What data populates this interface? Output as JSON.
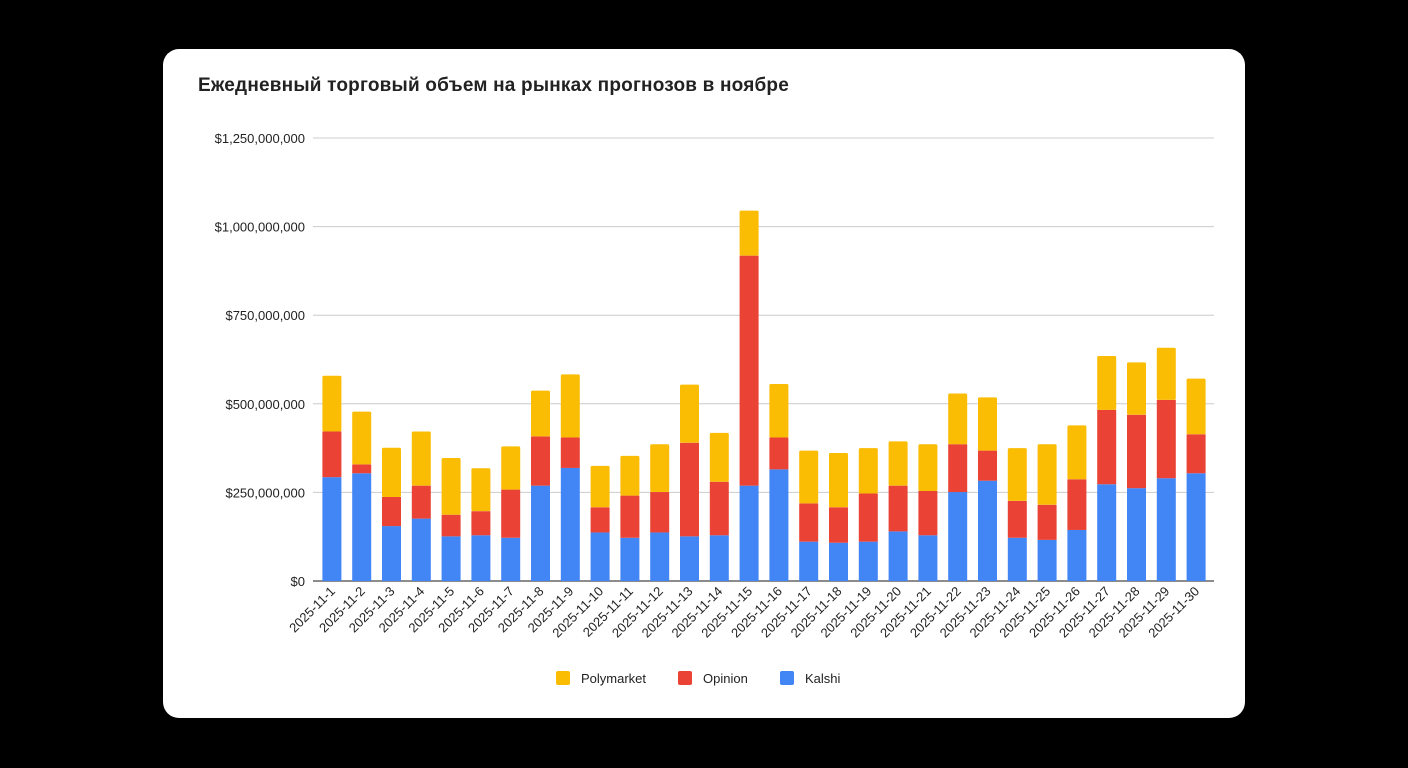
{
  "chart_data": {
    "type": "bar",
    "stacked": true,
    "title": "Ежедневный торговый объем на рынках прогнозов в ноябре",
    "xlabel": "",
    "ylabel": "",
    "ylim": [
      0,
      1250000000
    ],
    "yticks": [
      0,
      250000000,
      500000000,
      750000000,
      1000000000,
      1250000000
    ],
    "ytick_labels": [
      "$0",
      "$250,000,000",
      "$500,000,000",
      "$750,000,000",
      "$1,000,000,000",
      "$1,250,000,000"
    ],
    "grid": true,
    "legend_position": "bottom",
    "categories": [
      "2025-11-1",
      "2025-11-2",
      "2025-11-3",
      "2025-11-4",
      "2025-11-5",
      "2025-11-6",
      "2025-11-7",
      "2025-11-8",
      "2025-11-9",
      "2025-11-10",
      "2025-11-11",
      "2025-11-12",
      "2025-11-13",
      "2025-11-14",
      "2025-11-15",
      "2025-11-16",
      "2025-11-17",
      "2025-11-18",
      "2025-11-19",
      "2025-11-20",
      "2025-11-21",
      "2025-11-22",
      "2025-11-23",
      "2025-11-24",
      "2025-11-25",
      "2025-11-26",
      "2025-11-27",
      "2025-11-28",
      "2025-11-29",
      "2025-11-30"
    ],
    "series": [
      {
        "name": "Kalshi",
        "color": "#4285F4",
        "values": [
          293000000,
          304000000,
          155000000,
          176000000,
          126000000,
          129000000,
          122000000,
          269000000,
          319000000,
          137000000,
          122000000,
          137000000,
          126000000,
          129000000,
          269000000,
          315000000,
          111000000,
          108000000,
          111000000,
          140000000,
          129000000,
          251000000,
          283000000,
          122000000,
          116000000,
          144000000,
          273000000,
          262000000,
          290000000,
          304000000
        ]
      },
      {
        "name": "Opinion",
        "color": "#EA4335",
        "values": [
          129000000,
          25000000,
          82000000,
          93000000,
          61000000,
          68000000,
          136000000,
          139000000,
          86000000,
          71000000,
          119000000,
          114000000,
          264000000,
          151000000,
          649000000,
          90000000,
          108000000,
          100000000,
          136000000,
          129000000,
          125000000,
          135000000,
          85000000,
          104000000,
          99000000,
          143000000,
          210000000,
          207000000,
          221000000,
          110000000
        ]
      },
      {
        "name": "Polymarket",
        "color": "#FBBC04",
        "values": [
          157000000,
          149000000,
          139000000,
          153000000,
          160000000,
          121000000,
          122000000,
          129000000,
          178000000,
          117000000,
          112000000,
          135000000,
          164000000,
          138000000,
          127000000,
          151000000,
          149000000,
          153000000,
          128000000,
          125000000,
          132000000,
          143000000,
          150000000,
          149000000,
          171000000,
          152000000,
          152000000,
          148000000,
          147000000,
          157000000
        ]
      }
    ],
    "legend": [
      "Polymarket",
      "Opinion",
      "Kalshi"
    ]
  }
}
